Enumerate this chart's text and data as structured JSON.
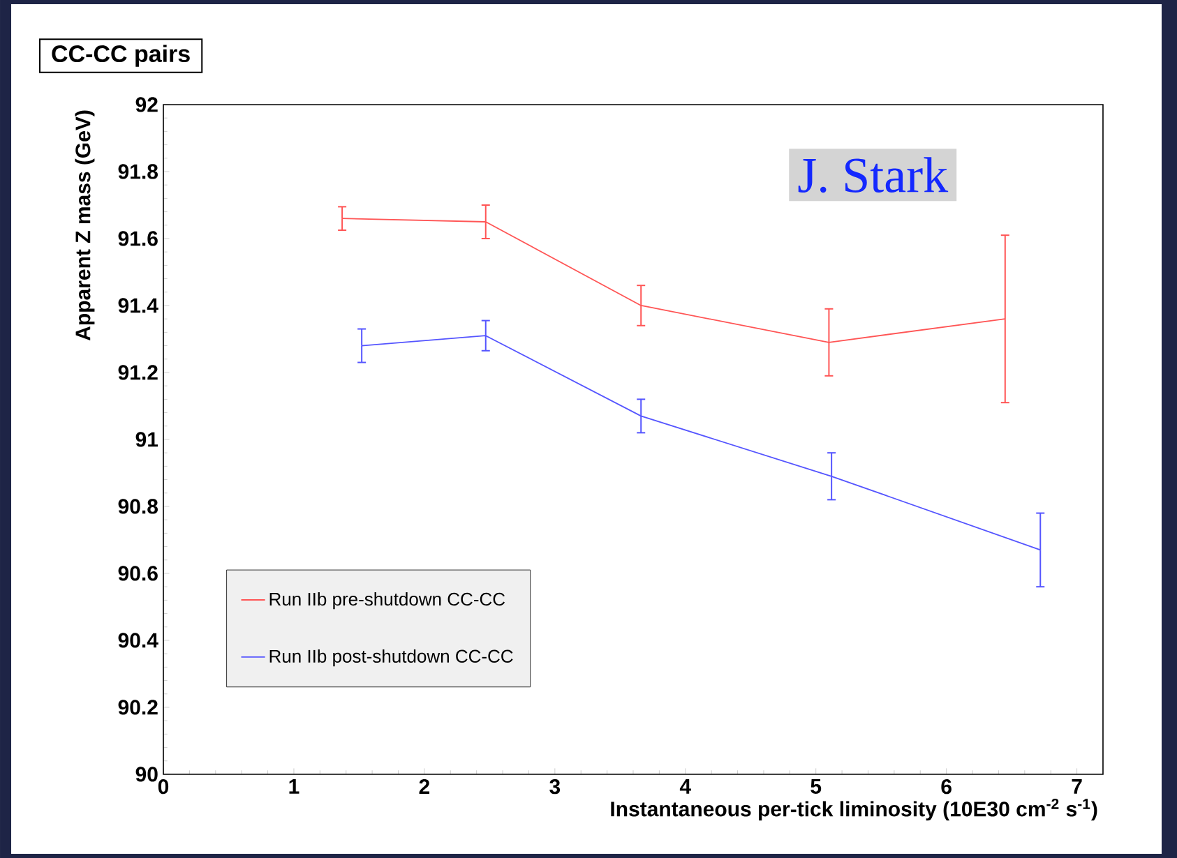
{
  "chart_data": {
    "type": "line",
    "title": "CC-CC pairs",
    "xlabel": "Instantaneous per-tick liminosity (10E30 cm$^{-2}$ s$^{-1}$)",
    "ylabel": "Apparent Z mass (GeV)",
    "annotations": [
      "J. Stark"
    ],
    "xlim": [
      0,
      7.2
    ],
    "xticks": [
      0,
      1,
      2,
      3,
      4,
      5,
      6,
      7
    ],
    "ylim": [
      90,
      92
    ],
    "yticks": [
      90,
      90.2,
      90.4,
      90.6,
      90.8,
      91,
      91.2,
      91.4,
      91.6,
      91.8,
      92
    ],
    "grid": false,
    "legend": "bottom left",
    "marker": "none",
    "line_style": "solid",
    "series": [
      {
        "name": "Run IIb pre-shutdown CC-CC",
        "color": "#ff5555",
        "x": [
          1.37,
          2.47,
          3.66,
          5.1,
          6.45
        ],
        "values": [
          91.66,
          91.65,
          91.4,
          91.29,
          91.36
        ],
        "errors": [
          0.035,
          0.05,
          0.06,
          0.1,
          0.25
        ]
      },
      {
        "name": "Run IIb post-shutdown CC-CC",
        "color": "#5555ff",
        "x": [
          1.52,
          2.47,
          3.66,
          5.12,
          6.72
        ],
        "values": [
          91.28,
          91.31,
          91.07,
          90.89,
          90.67
        ],
        "errors": [
          0.05,
          0.045,
          0.05,
          0.07,
          0.11
        ]
      }
    ]
  }
}
